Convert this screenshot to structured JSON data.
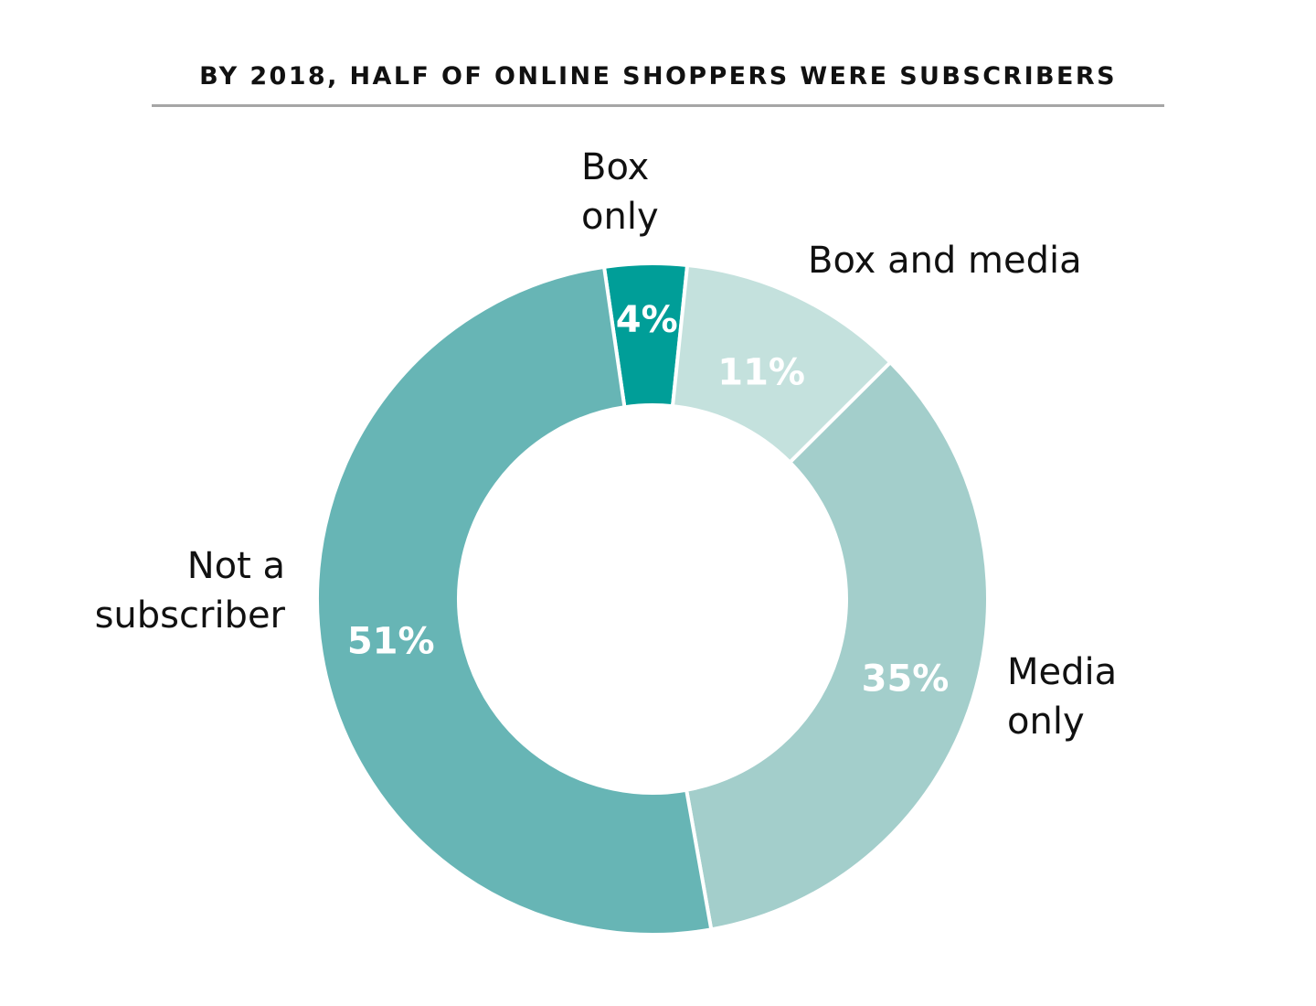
{
  "chart_data": {
    "type": "pie",
    "title": "BY 2018, HALF OF ONLINE SHOPPERS WERE SUBSCRIBERS",
    "donut": true,
    "categories": [
      "Box only",
      "Box and media",
      "Media only",
      "Not a subscriber"
    ],
    "values": [
      4,
      11,
      35,
      51
    ],
    "value_labels": [
      "4%",
      "11%",
      "35%",
      "51%"
    ],
    "label_lines": [
      [
        "Box",
        "only"
      ],
      [
        "Box and media"
      ],
      [
        "Media",
        "only"
      ],
      [
        "Not a",
        "subscriber"
      ]
    ],
    "colors": [
      "#009e98",
      "#c4e1dd",
      "#a3cecb",
      "#67b5b5"
    ],
    "unit": "%",
    "legend": "none"
  }
}
